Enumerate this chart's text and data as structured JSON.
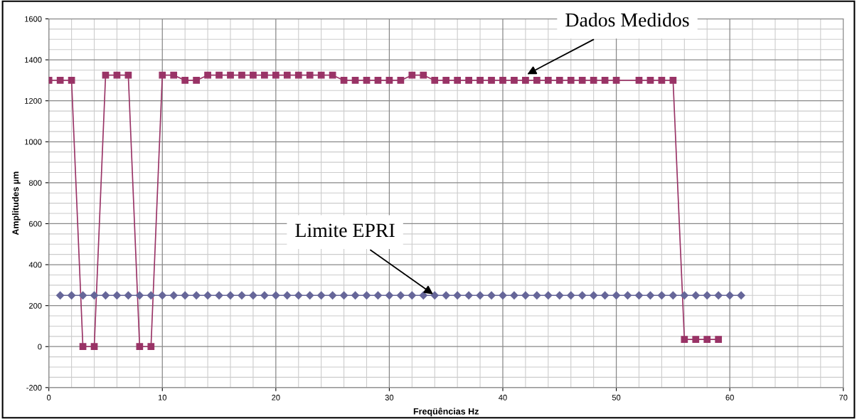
{
  "chart_data": {
    "type": "line",
    "xlabel": "Freqüências Hz",
    "ylabel": "Amplitudes µm",
    "xlim": [
      0,
      70
    ],
    "xticks": [
      0,
      10,
      20,
      30,
      40,
      50,
      60,
      70
    ],
    "ylim": [
      -200,
      1600
    ],
    "yticks": [
      -200,
      0,
      200,
      400,
      600,
      800,
      1000,
      1200,
      1400,
      1600
    ],
    "grid": true,
    "line_style": "solid",
    "series": [
      {
        "color": "#993366",
        "marker": "square",
        "x": [
          0,
          1,
          2,
          3,
          4,
          5,
          6,
          7,
          8,
          9,
          10,
          11,
          12,
          13,
          14,
          15,
          16,
          17,
          18,
          19,
          20,
          21,
          22,
          23,
          24,
          25,
          26,
          27,
          28,
          29,
          30,
          31,
          32,
          33,
          34,
          35,
          36,
          37,
          38,
          39,
          40,
          41,
          42,
          43,
          44,
          45,
          46,
          47,
          48,
          49,
          50,
          52,
          53,
          54,
          55,
          56,
          57,
          58,
          59
        ],
        "values": [
          1300,
          1300,
          1300,
          0,
          0,
          1325,
          1325,
          1325,
          0,
          0,
          1325,
          1325,
          1300,
          1300,
          1325,
          1325,
          1325,
          1325,
          1325,
          1325,
          1325,
          1325,
          1325,
          1325,
          1325,
          1325,
          1300,
          1300,
          1300,
          1300,
          1300,
          1300,
          1325,
          1325,
          1300,
          1300,
          1300,
          1300,
          1300,
          1300,
          1300,
          1300,
          1300,
          1300,
          1300,
          1300,
          1300,
          1300,
          1300,
          1300,
          1300,
          1300,
          1300,
          1300,
          1300,
          35,
          35,
          35,
          35
        ]
      },
      {
        "color": "#666699",
        "marker": "diamond",
        "x": [
          1,
          2,
          3,
          4,
          5,
          6,
          7,
          8,
          9,
          10,
          11,
          12,
          13,
          14,
          15,
          16,
          17,
          18,
          19,
          20,
          21,
          22,
          23,
          24,
          25,
          26,
          27,
          28,
          29,
          30,
          31,
          32,
          33,
          34,
          35,
          36,
          37,
          38,
          39,
          40,
          41,
          42,
          43,
          44,
          45,
          46,
          47,
          48,
          49,
          50,
          51,
          52,
          53,
          54,
          55,
          56,
          57,
          58,
          59,
          60,
          61
        ],
        "values": [
          250,
          250,
          250,
          250,
          250,
          250,
          250,
          250,
          250,
          250,
          250,
          250,
          250,
          250,
          250,
          250,
          250,
          250,
          250,
          250,
          250,
          250,
          250,
          250,
          250,
          250,
          250,
          250,
          250,
          250,
          250,
          250,
          250,
          250,
          250,
          250,
          250,
          250,
          250,
          250,
          250,
          250,
          250,
          250,
          250,
          250,
          250,
          250,
          250,
          250,
          250,
          250,
          250,
          250,
          250,
          250,
          250,
          250,
          250,
          250,
          250
        ]
      }
    ],
    "annotations": [
      {
        "text": "Dados Medidos",
        "x": 42,
        "y": 1325
      },
      {
        "text": "Limite EPRI",
        "x": 34,
        "y": 250
      }
    ]
  }
}
